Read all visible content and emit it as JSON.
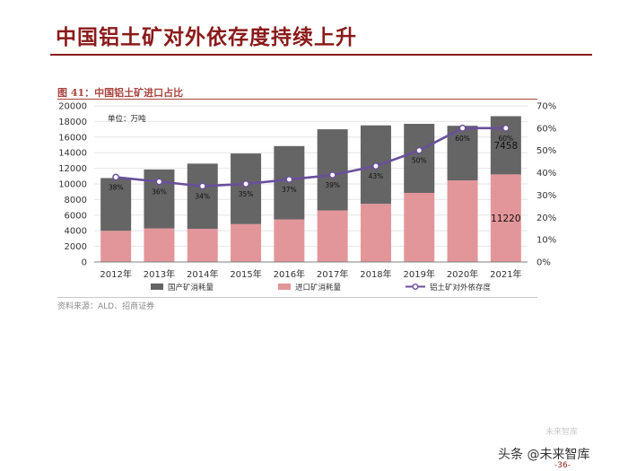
{
  "page": {
    "title": "中国铝土矿对外依存度持续上升",
    "figure_title": "图 41：中国铝土矿进口占比",
    "source": "资料来源：ALD、招商证券",
    "page_number": "-36-",
    "watermark": "头条 @未来智库",
    "wechat_watermark": "未来智库"
  },
  "chart_data": {
    "type": "bar",
    "stacked": true,
    "title": "中国铝土矿进口占比",
    "unit_label": "单位：万吨",
    "categories": [
      "2012年",
      "2013年",
      "2014年",
      "2015年",
      "2016年",
      "2017年",
      "2018年",
      "2019年",
      "2020年",
      "2021年"
    ],
    "series": [
      {
        "name": "进口矿消耗量",
        "color": "#e3969a",
        "values": [
          4000,
          4300,
          4250,
          4850,
          5450,
          6600,
          7450,
          8850,
          10450,
          11220
        ]
      },
      {
        "name": "国产矿消耗量",
        "color": "#656565",
        "values": [
          6750,
          7550,
          8350,
          9050,
          9400,
          10400,
          10050,
          8850,
          7000,
          7458
        ]
      }
    ],
    "line": {
      "name": "铝土矿对外依存度",
      "color": "#6a4f9c",
      "values": [
        38,
        36,
        34,
        35,
        37,
        39,
        43,
        50,
        60,
        60
      ],
      "labels": [
        "38%",
        "36%",
        "34%",
        "35%",
        "37%",
        "39%",
        "43%",
        "50%",
        "60%",
        "60%"
      ]
    },
    "bar_value_labels": [
      {
        "index": 9,
        "series": "进口矿消耗量",
        "text": "11220"
      },
      {
        "index": 9,
        "series": "国产矿消耗量",
        "text": "7458"
      }
    ],
    "y_left": {
      "min": 0,
      "max": 20000,
      "step": 2000,
      "ticks": [
        "0",
        "2000",
        "4000",
        "6000",
        "8000",
        "10000",
        "12000",
        "14000",
        "16000",
        "18000",
        "20000"
      ]
    },
    "y_right": {
      "min": 0,
      "max": 70,
      "step": 10,
      "ticks": [
        "0%",
        "10%",
        "20%",
        "30%",
        "40%",
        "50%",
        "60%",
        "70%"
      ]
    },
    "legend": [
      {
        "name": "国产矿消耗量",
        "kind": "bar",
        "color": "#656565"
      },
      {
        "name": "进口矿消耗量",
        "kind": "bar",
        "color": "#e3969a"
      },
      {
        "name": "铝土矿对外依存度",
        "kind": "line",
        "color": "#6a4f9c"
      }
    ],
    "legend_position": "bottom"
  }
}
